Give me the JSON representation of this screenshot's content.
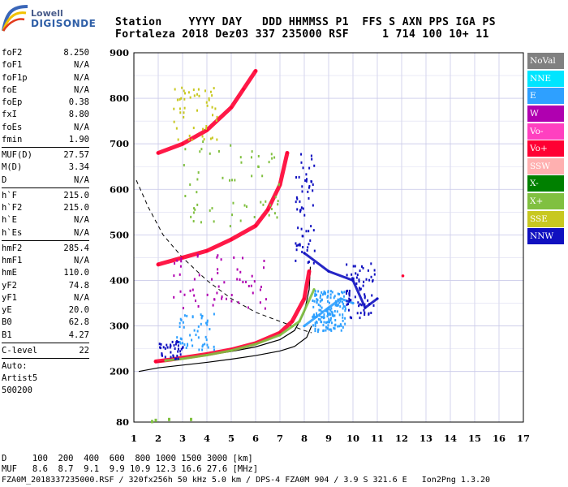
{
  "logo": {
    "line1": "Lowell",
    "line2": "DIGISONDE"
  },
  "header": {
    "labels": "Station    YYYY DAY   DDD HHMMSS P1  FFS S AXN PPS IGA PS",
    "values": "Fortaleza 2018 Dez03 337 235000 RSF     1 714 100 10+ 11"
  },
  "params": {
    "group1": [
      {
        "name": "foF2",
        "value": "8.250"
      },
      {
        "name": "foF1",
        "value": "N/A"
      },
      {
        "name": "foF1p",
        "value": "N/A"
      },
      {
        "name": "foE",
        "value": "N/A"
      },
      {
        "name": "foEp",
        "value": "0.38"
      },
      {
        "name": "fxI",
        "value": "8.80"
      },
      {
        "name": "foEs",
        "value": "N/A"
      },
      {
        "name": "fmin",
        "value": "1.90"
      }
    ],
    "group2": [
      {
        "name": "MUF(D)",
        "value": "27.57"
      },
      {
        "name": "M(D)",
        "value": "3.34"
      },
      {
        "name": "D",
        "value": "N/A"
      }
    ],
    "group3": [
      {
        "name": "h`F",
        "value": "215.0"
      },
      {
        "name": "h`F2",
        "value": "215.0"
      },
      {
        "name": "h`E",
        "value": "N/A"
      },
      {
        "name": "h`Es",
        "value": "N/A"
      }
    ],
    "group4": [
      {
        "name": "hmF2",
        "value": "285.4"
      },
      {
        "name": "hmF1",
        "value": "N/A"
      },
      {
        "name": "hmE",
        "value": "110.0"
      },
      {
        "name": "yF2",
        "value": "74.8"
      },
      {
        "name": "yF1",
        "value": "N/A"
      },
      {
        "name": "yE",
        "value": "20.0"
      },
      {
        "name": "B0",
        "value": "62.8"
      },
      {
        "name": "B1",
        "value": "4.27"
      }
    ],
    "clevel": {
      "name": "C-level",
      "value": "22"
    },
    "auto": [
      "Auto:",
      "Artist5",
      "500200"
    ]
  },
  "legend": [
    {
      "label": "NoVal",
      "color": "#808080"
    },
    {
      "label": "NNE",
      "color": "#00e5ff"
    },
    {
      "label": "E",
      "color": "#2ea0ff"
    },
    {
      "label": "W",
      "color": "#b000b0"
    },
    {
      "label": "Vo-",
      "color": "#ff40c0"
    },
    {
      "label": "Vo+",
      "color": "#ff0033"
    },
    {
      "label": "SSW",
      "color": "#ffb0b0"
    },
    {
      "label": "X-",
      "color": "#008000"
    },
    {
      "label": "X+",
      "color": "#80c040"
    },
    {
      "label": "SSE",
      "color": "#c8c820"
    },
    {
      "label": "NNW",
      "color": "#1010c0"
    }
  ],
  "bottom": {
    "row1": "D     100  200  400  600  800 1000 1500 3000 [km]",
    "row2": "MUF   8.6  8.7  9.1  9.9 10.9 12.3 16.6 27.6 [MHz]",
    "footer": "FZA0M_2018337235000.RSF / 320fx256h 50 kHz 5.0 km / DPS-4 FZA0M 904 / 3.9 S 321.6 E   Ion2Png 1.3.20"
  },
  "chart_data": {
    "type": "scatter",
    "title": "",
    "xlabel": "",
    "ylabel": "",
    "x_ticks": [
      1,
      2,
      3,
      4,
      5,
      6,
      7,
      8,
      9,
      10,
      11,
      12,
      13,
      14,
      15,
      16,
      17
    ],
    "y_ticks": [
      80,
      200,
      300,
      400,
      500,
      600,
      700,
      800,
      900
    ],
    "xlim": [
      1,
      17
    ],
    "ylim": [
      80,
      900
    ],
    "grid": true,
    "legend_position": "right",
    "series": [
      {
        "name": "Vo+",
        "color": "#ff0033",
        "x": [
          1.9,
          2.5,
          3.0,
          4.0,
          5.0,
          6.0,
          7.0,
          7.5,
          8.0,
          8.2
        ],
        "y": [
          222,
          226,
          230,
          238,
          248,
          262,
          285,
          310,
          360,
          420
        ]
      },
      {
        "name": "Vo+",
        "color": "#ff0033",
        "x": [
          2.0,
          3.0,
          4.0,
          5.0,
          6.0,
          6.5,
          7.0,
          7.3
        ],
        "y": [
          435,
          450,
          465,
          490,
          520,
          555,
          610,
          680
        ]
      },
      {
        "name": "Vo+",
        "color": "#ff0033",
        "x": [
          2.0,
          3.0,
          4.0,
          5.0,
          5.5,
          6.0
        ],
        "y": [
          680,
          700,
          730,
          780,
          820,
          860
        ]
      },
      {
        "name": "X+",
        "color": "#80c040",
        "x": [
          2.3,
          3.0,
          4.0,
          5.0,
          6.0,
          7.0,
          7.8,
          8.4
        ],
        "y": [
          224,
          228,
          236,
          246,
          260,
          280,
          310,
          380
        ]
      },
      {
        "name": "E",
        "color": "#2ea0ff",
        "x": [
          8.0,
          8.5,
          9.0,
          9.5,
          10.0
        ],
        "y": [
          300,
          320,
          340,
          360,
          350
        ]
      },
      {
        "name": "NNW",
        "color": "#1010c0",
        "x": [
          8.0,
          9.0,
          10.0,
          10.5,
          11.0
        ],
        "y": [
          460,
          420,
          400,
          340,
          360
        ]
      }
    ]
  }
}
